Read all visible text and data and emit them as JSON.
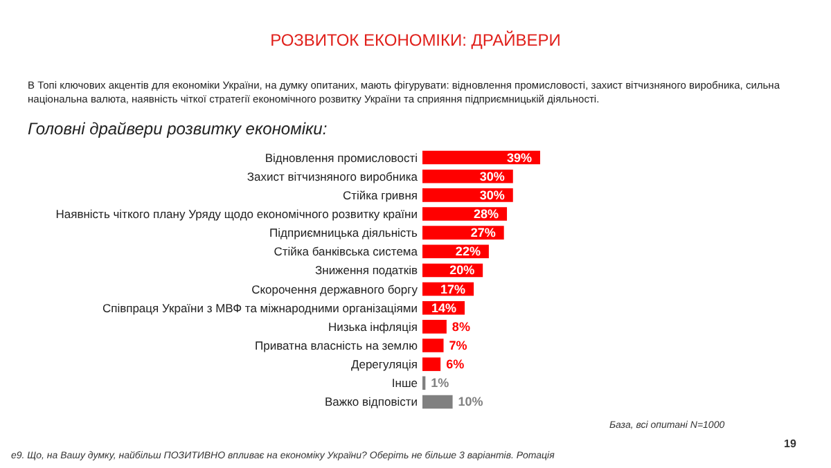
{
  "chart_data": {
    "type": "bar",
    "orientation": "horizontal",
    "title": "РОЗВИТОК ЕКОНОМІКИ: ДРАЙВЕРИ",
    "subtitle": "В Топі ключових акцентів для економіки України, на думку опитаних, мають фігурувати: відновлення промисловості, захист вітчизняного виробника, сильна національна валюта, наявність чіткої стратегії економічного розвитку України та сприяння підприємницькій діяльності.",
    "annotations": [
      "Головні драйвери розвитку економіки:",
      "База, всі опитані N=1000",
      "19",
      "е9. Що, на Вашу думку, найбільш ПОЗИТИВНО впливає на економіку України? Оберіть не більше 3 варіантів. Ротація"
    ],
    "categories": [
      "Відновлення промисловості",
      "Захист вітчизняного виробника",
      "Стійка гривня",
      "Наявність чіткого плану Уряду щодо економічного розвитку країни",
      "Підприємницька діяльність",
      "Стійка банківська система",
      "Зниження податків",
      "Скорочення державного боргу",
      "Співпраця України з МВФ та міжнародними організаціями",
      "Низька інфляція",
      "Приватна власність на землю",
      "Дерегуляція",
      "Інше",
      "Важко відповісти"
    ],
    "values": [
      39,
      30,
      30,
      28,
      27,
      22,
      20,
      17,
      14,
      8,
      7,
      6,
      1,
      10
    ],
    "value_labels": [
      "39%",
      "30%",
      "30%",
      "28%",
      "27%",
      "22%",
      "20%",
      "17%",
      "14%",
      "8%",
      "7%",
      "6%",
      "1%",
      "10%"
    ],
    "colors": [
      "#ff0000",
      "#ff0000",
      "#ff0000",
      "#ff0000",
      "#ff0000",
      "#ff0000",
      "#ff0000",
      "#ff0000",
      "#ff0000",
      "#ff0000",
      "#ff0000",
      "#ff0000",
      "#808080",
      "#808080"
    ]
  }
}
